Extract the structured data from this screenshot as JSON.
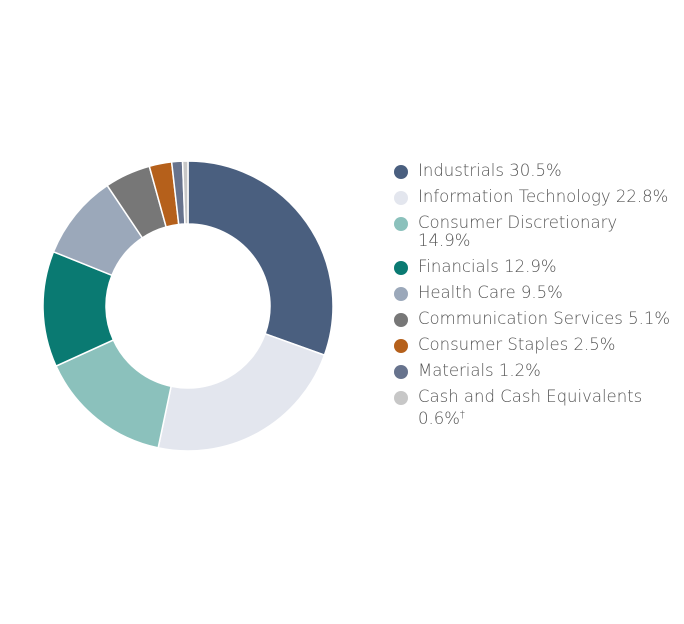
{
  "chart_data": {
    "type": "pie",
    "categories": [
      "Industrials",
      "Information Technology",
      "Consumer Discretionary",
      "Financials",
      "Health Care",
      "Communication Services",
      "Consumer Staples",
      "Materials",
      "Cash and Cash Equivalents"
    ],
    "values": [
      30.5,
      22.8,
      14.9,
      12.9,
      9.5,
      5.1,
      2.5,
      1.2,
      0.6
    ],
    "colors": [
      "#4a5f7f",
      "#e3e6ee",
      "#8bc1bc",
      "#0a7a72",
      "#9ba8ba",
      "#777777",
      "#b5601b",
      "#67738d",
      "#c7c7c7"
    ],
    "legend": [
      {
        "label": "Industrials 30.5%"
      },
      {
        "label": "Information Technology 22.8%"
      },
      {
        "label": "Consumer Discretionary 14.9%"
      },
      {
        "label": "Financials 12.9%"
      },
      {
        "label": "Health Care 9.5%"
      },
      {
        "label": "Communication Services 5.1%"
      },
      {
        "label": "Consumer Staples 2.5%"
      },
      {
        "label": "Materials 1.2%"
      },
      {
        "label": "Cash and Cash Equivalents 0.6%",
        "footnote": "†"
      }
    ],
    "legend_position": "right"
  }
}
